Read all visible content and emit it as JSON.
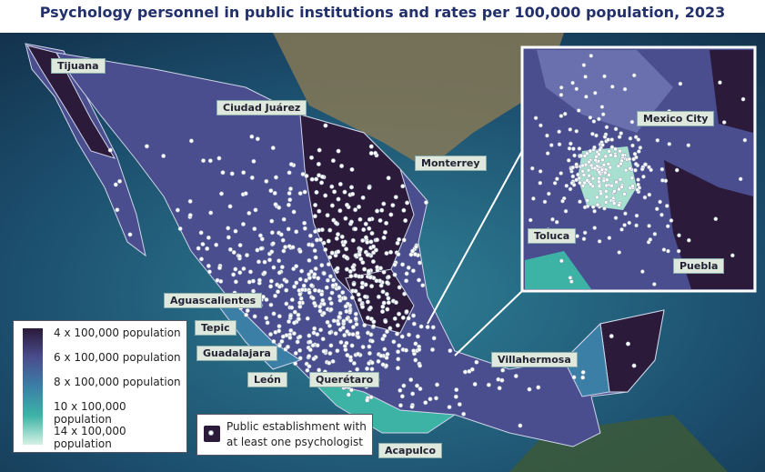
{
  "title": "Psychology personnel in public institutions and rates per 100,000 population, 2023",
  "cities": [
    "Tijuana",
    "Ciudad Juárez",
    "Monterrey",
    "Aguascalientes",
    "Tepic",
    "Guadalajara",
    "León",
    "Querétaro",
    "Acapulco",
    "Villahermosa"
  ],
  "inset": {
    "cities": [
      "Mexico City",
      "Toluca",
      "Puebla"
    ]
  },
  "legend": {
    "items": [
      {
        "label": "4 x 100,000 population",
        "color": "#2b1a3a"
      },
      {
        "label": "6 x 100,000 population",
        "color": "#4a4d8e"
      },
      {
        "label": "8 x 100,000 population",
        "color": "#3b7fa6"
      },
      {
        "label": "10 x 100,000 population",
        "color": "#3db3a6"
      },
      {
        "label": "14 x 100,000 population",
        "color": "#d4f2e4"
      }
    ],
    "point_label": [
      "Public establishment with",
      "at least one psychologist"
    ]
  }
}
